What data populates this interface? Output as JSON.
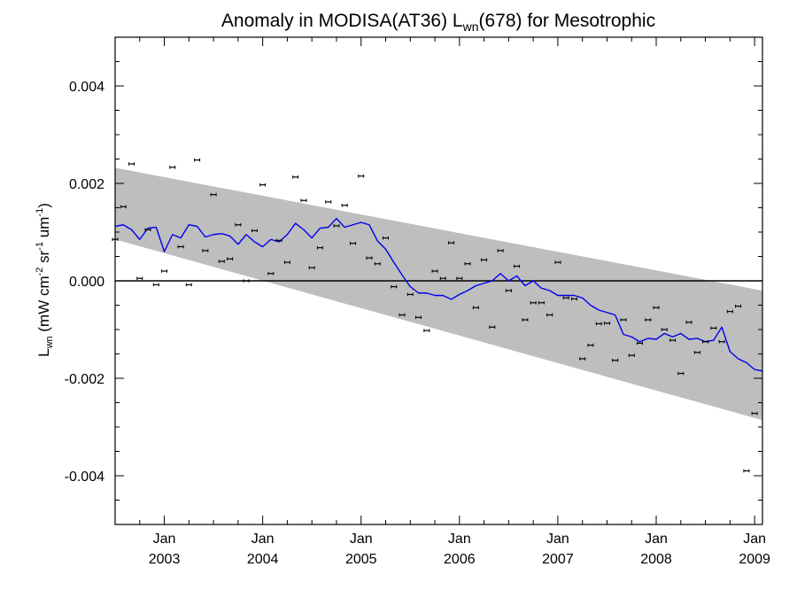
{
  "chart_data": {
    "type": "scatter",
    "title": {
      "prefix": "Anomaly in MODISA(AT36) L",
      "subscript": "wn",
      "suffix": "(678) for Mesotrophic"
    },
    "ylabel": {
      "main": "L",
      "sub": "wn",
      "units_prefix": " (mW cm",
      "sup1": "-2",
      "units_mid": " sr",
      "sup2": "-1",
      "units_mid2": " um",
      "sup3": "-1",
      "units_end": ")"
    },
    "xlim": [
      2002.5,
      2009.08
    ],
    "ylim": [
      -0.005,
      0.005
    ],
    "y_ticks": [
      -0.004,
      -0.002,
      0.0,
      0.002,
      0.004
    ],
    "y_tick_labels": [
      "-0.004",
      "-0.002",
      "0.000",
      "0.002",
      "0.004"
    ],
    "x_ticks": [
      {
        "pos": 2003.0,
        "month": "Jan",
        "year": "2003"
      },
      {
        "pos": 2004.0,
        "month": "Jan",
        "year": "2004"
      },
      {
        "pos": 2005.0,
        "month": "Jan",
        "year": "2005"
      },
      {
        "pos": 2006.0,
        "month": "Jan",
        "year": "2006"
      },
      {
        "pos": 2007.0,
        "month": "Jan",
        "year": "2007"
      },
      {
        "pos": 2008.0,
        "month": "Jan",
        "year": "2008"
      },
      {
        "pos": 2009.0,
        "month": "Jan",
        "year": "2009"
      }
    ],
    "zero_line": 0.0,
    "band": {
      "x": [
        2002.5,
        2009.08
      ],
      "upper": [
        0.00232,
        -0.0002
      ],
      "lower": [
        0.00085,
        -0.00286
      ],
      "color": "#bebebe"
    },
    "points": {
      "name": "monthly anomaly",
      "color": "#000000",
      "data": [
        [
          2002.5,
          0.00085
        ],
        [
          2002.583,
          0.00152
        ],
        [
          2002.667,
          0.0024
        ],
        [
          2002.75,
          5e-05
        ],
        [
          2002.833,
          0.00105
        ],
        [
          2002.917,
          -8e-05
        ],
        [
          2003.0,
          0.0002
        ],
        [
          2003.083,
          0.00233
        ],
        [
          2003.167,
          0.0007
        ],
        [
          2003.25,
          -8e-05
        ],
        [
          2003.333,
          0.00248
        ],
        [
          2003.417,
          0.00062
        ],
        [
          2003.5,
          0.00177
        ],
        [
          2003.583,
          0.0004
        ],
        [
          2003.667,
          0.00045
        ],
        [
          2003.75,
          0.00115
        ],
        [
          2003.833,
          0.0
        ],
        [
          2003.917,
          0.00103
        ],
        [
          2004.0,
          0.00197
        ],
        [
          2004.083,
          0.00015
        ],
        [
          2004.167,
          0.00083
        ],
        [
          2004.25,
          0.00038
        ],
        [
          2004.333,
          0.00213
        ],
        [
          2004.417,
          0.00165
        ],
        [
          2004.5,
          0.00027
        ],
        [
          2004.583,
          0.00068
        ],
        [
          2004.667,
          0.00162
        ],
        [
          2004.75,
          0.00113
        ],
        [
          2004.833,
          0.00155
        ],
        [
          2004.917,
          0.00077
        ],
        [
          2005.0,
          0.00215
        ],
        [
          2005.083,
          0.00047
        ],
        [
          2005.167,
          0.00035
        ],
        [
          2005.25,
          0.00088
        ],
        [
          2005.333,
          -0.00012
        ],
        [
          2005.417,
          -0.0007
        ],
        [
          2005.5,
          -0.00028
        ],
        [
          2005.583,
          -0.00075
        ],
        [
          2005.667,
          -0.00102
        ],
        [
          2005.75,
          0.0002
        ],
        [
          2005.833,
          5e-05
        ],
        [
          2005.917,
          0.00078
        ],
        [
          2006.0,
          5e-05
        ],
        [
          2006.083,
          0.00035
        ],
        [
          2006.167,
          -0.00055
        ],
        [
          2006.25,
          0.00043
        ],
        [
          2006.333,
          -0.00095
        ],
        [
          2006.417,
          0.00062
        ],
        [
          2006.5,
          -0.0002
        ],
        [
          2006.583,
          0.0003
        ],
        [
          2006.667,
          -0.0008
        ],
        [
          2006.75,
          -0.00045
        ],
        [
          2006.833,
          -0.00045
        ],
        [
          2006.917,
          -0.0007
        ],
        [
          2007.0,
          0.00038
        ],
        [
          2007.083,
          -0.00035
        ],
        [
          2007.167,
          -0.00037
        ],
        [
          2007.25,
          -0.0016
        ],
        [
          2007.333,
          -0.00132
        ],
        [
          2007.417,
          -0.00088
        ],
        [
          2007.5,
          -0.00087
        ],
        [
          2007.583,
          -0.00163
        ],
        [
          2007.667,
          -0.0008
        ],
        [
          2007.75,
          -0.00153
        ],
        [
          2007.833,
          -0.00128
        ],
        [
          2007.917,
          -0.0008
        ],
        [
          2008.0,
          -0.00055
        ],
        [
          2008.083,
          -0.001
        ],
        [
          2008.167,
          -0.00122
        ],
        [
          2008.25,
          -0.0019
        ],
        [
          2008.333,
          -0.00085
        ],
        [
          2008.417,
          -0.00147
        ],
        [
          2008.5,
          -0.00125
        ],
        [
          2008.583,
          -0.00097
        ],
        [
          2008.667,
          -0.00125
        ],
        [
          2008.75,
          -0.00063
        ],
        [
          2008.833,
          -0.00052
        ],
        [
          2008.917,
          -0.0039
        ],
        [
          2009.0,
          -0.00272
        ]
      ]
    },
    "series": [
      {
        "name": "running mean",
        "color": "#0000ee",
        "x": [
          2002.5,
          2002.583,
          2002.667,
          2002.75,
          2002.833,
          2002.917,
          2003.0,
          2003.083,
          2003.167,
          2003.25,
          2003.333,
          2003.417,
          2003.5,
          2003.583,
          2003.667,
          2003.75,
          2003.833,
          2003.917,
          2004.0,
          2004.083,
          2004.167,
          2004.25,
          2004.333,
          2004.417,
          2004.5,
          2004.583,
          2004.667,
          2004.75,
          2004.833,
          2004.917,
          2005.0,
          2005.083,
          2005.167,
          2005.25,
          2005.333,
          2005.417,
          2005.5,
          2005.583,
          2005.667,
          2005.75,
          2005.833,
          2005.917,
          2006.0,
          2006.083,
          2006.167,
          2006.25,
          2006.333,
          2006.417,
          2006.5,
          2006.583,
          2006.667,
          2006.75,
          2006.833,
          2006.917,
          2007.0,
          2007.083,
          2007.167,
          2007.25,
          2007.333,
          2007.417,
          2007.5,
          2007.583,
          2007.667,
          2007.75,
          2007.833,
          2007.917,
          2008.0,
          2008.083,
          2008.167,
          2008.25,
          2008.333,
          2008.417,
          2008.5,
          2008.583,
          2008.667,
          2008.75,
          2008.833,
          2008.917,
          2009.0,
          2009.08
        ],
        "values": [
          0.00112,
          0.00115,
          0.00105,
          0.00085,
          0.00108,
          0.0011,
          0.0006,
          0.00095,
          0.00088,
          0.00115,
          0.00112,
          0.0009,
          0.00095,
          0.00097,
          0.00092,
          0.00075,
          0.00095,
          0.0008,
          0.0007,
          0.00085,
          0.0008,
          0.00095,
          0.00118,
          0.00105,
          0.00088,
          0.00108,
          0.0011,
          0.00128,
          0.0011,
          0.00115,
          0.0012,
          0.00115,
          0.00082,
          0.00065,
          0.00038,
          0.00012,
          -0.00012,
          -0.00025,
          -0.00025,
          -0.0003,
          -0.0003,
          -0.00038,
          -0.00028,
          -0.0002,
          -0.0001,
          -5e-05,
          0.0,
          0.00015,
          0.0,
          0.0001,
          -0.0001,
          0.0,
          -0.00015,
          -0.0002,
          -0.0003,
          -0.0003,
          -0.0003,
          -0.00035,
          -0.0005,
          -0.0006,
          -0.00065,
          -0.0007,
          -0.0011,
          -0.00115,
          -0.00125,
          -0.00118,
          -0.0012,
          -0.00108,
          -0.00115,
          -0.00108,
          -0.0012,
          -0.00118,
          -0.00125,
          -0.00122,
          -0.00095,
          -0.00145,
          -0.0016,
          -0.00168,
          -0.00182,
          -0.00185
        ]
      }
    ],
    "grid": false,
    "legend": "none"
  }
}
